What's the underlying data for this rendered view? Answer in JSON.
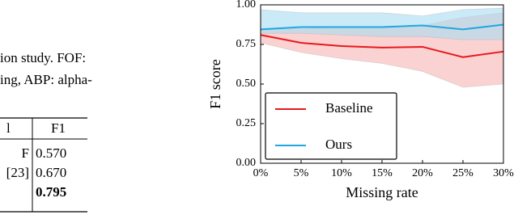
{
  "text_lines": [
    "ion  study.  FOF:",
    "ing, ABP: alpha-"
  ],
  "table": {
    "header": [
      "l",
      "F1"
    ],
    "rows": [
      [
        "F",
        "0.570"
      ],
      [
        "[23]",
        "0.670"
      ],
      [
        null,
        "0.795"
      ]
    ],
    "bold_row": 2
  },
  "chart_data": {
    "type": "line",
    "categories": [
      "0%",
      "5%",
      "10%",
      "15%",
      "20%",
      "25%",
      "30%"
    ],
    "xlabel": "Missing rate",
    "ylabel": "F1 score",
    "ylim": [
      0,
      1
    ],
    "yticks": [
      {
        "value": 0,
        "label": "0.00"
      },
      {
        "value": 0.25,
        "label": "0.25"
      },
      {
        "value": 0.5,
        "label": "0.50"
      },
      {
        "value": 0.75,
        "label": "0.75"
      },
      {
        "value": 1,
        "label": "1.00"
      }
    ],
    "legend": "lower left",
    "series": [
      {
        "name": "Baseline",
        "color": "#e8191c",
        "band_color": "#f8b4b4",
        "values": [
          0.81,
          0.76,
          0.74,
          0.73,
          0.735,
          0.67,
          0.705
        ],
        "lower": [
          0.76,
          0.7,
          0.66,
          0.63,
          0.58,
          0.48,
          0.5
        ],
        "upper": [
          0.84,
          0.85,
          0.86,
          0.86,
          0.87,
          0.92,
          0.95
        ]
      },
      {
        "name": "Ours",
        "color": "#1ea7e0",
        "band_color": "#a8dcf2",
        "values": [
          0.845,
          0.86,
          0.86,
          0.86,
          0.87,
          0.845,
          0.875
        ],
        "lower": [
          0.82,
          0.82,
          0.81,
          0.8,
          0.8,
          0.78,
          0.78
        ],
        "upper": [
          0.97,
          0.95,
          0.95,
          0.95,
          0.93,
          0.97,
          0.98
        ]
      }
    ]
  }
}
